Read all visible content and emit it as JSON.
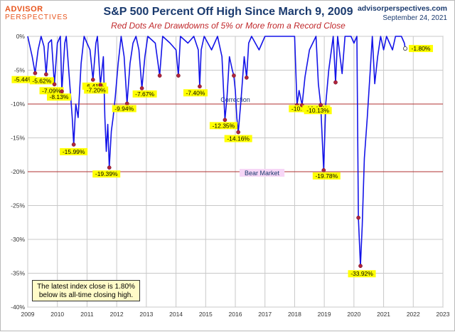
{
  "header": {
    "logo_line1": "ADVISOR",
    "logo_line2": "PERSPECTIVES",
    "site": "advisorperspectives.com",
    "date": "September 24, 2021"
  },
  "note": "The latest index close is 1.80% below its all-time closing high.",
  "colors": {
    "line": "#1414e8",
    "dot": "#b0243c",
    "refline": "#b03030",
    "label_bg": "#ffff00",
    "title": "#1a3a6e",
    "subtitle": "#c0282b"
  },
  "chart_data": {
    "type": "line",
    "title": "S&P 500 Percent Off High Since March 9, 2009",
    "subtitle": "Red Dots Are Drawdowns of 5% or More from a Record Close",
    "xlim": [
      2009,
      2023
    ],
    "ylim": [
      -40,
      0
    ],
    "x_ticks": [
      "2009",
      "2010",
      "2011",
      "2012",
      "2013",
      "2014",
      "2015",
      "2016",
      "2017",
      "2018",
      "2019",
      "2020",
      "2021",
      "2022",
      "2023"
    ],
    "y_ticks": [
      "0%",
      "-5%",
      "-10%",
      "-15%",
      "-20%",
      "-25%",
      "-30%",
      "-35%",
      "-40%"
    ],
    "grid": true,
    "series": [
      {
        "points": [
          [
            2009.0,
            0
          ],
          [
            2009.15,
            -3
          ],
          [
            2009.25,
            -5.44
          ],
          [
            2009.35,
            -2
          ],
          [
            2009.45,
            0
          ],
          [
            2009.55,
            -1.5
          ],
          [
            2009.62,
            -5.62
          ],
          [
            2009.7,
            -1
          ],
          [
            2009.8,
            -0.5
          ],
          [
            2009.9,
            -7.09
          ],
          [
            2010.0,
            -1
          ],
          [
            2010.1,
            0
          ],
          [
            2010.15,
            -8.13
          ],
          [
            2010.25,
            -1
          ],
          [
            2010.3,
            0
          ],
          [
            2010.4,
            -6
          ],
          [
            2010.5,
            -12
          ],
          [
            2010.55,
            -15.99
          ],
          [
            2010.62,
            -10
          ],
          [
            2010.7,
            -12
          ],
          [
            2010.8,
            -4
          ],
          [
            2010.9,
            0
          ],
          [
            2011.0,
            -1
          ],
          [
            2011.1,
            -2
          ],
          [
            2011.2,
            -6.41
          ],
          [
            2011.3,
            -1
          ],
          [
            2011.35,
            0
          ],
          [
            2011.45,
            -7.2
          ],
          [
            2011.55,
            -3
          ],
          [
            2011.6,
            -12
          ],
          [
            2011.65,
            -17
          ],
          [
            2011.7,
            -13
          ],
          [
            2011.75,
            -19.39
          ],
          [
            2011.82,
            -14
          ],
          [
            2011.88,
            -12
          ],
          [
            2011.95,
            -9
          ],
          [
            2012.05,
            -4
          ],
          [
            2012.15,
            0
          ],
          [
            2012.25,
            -3
          ],
          [
            2012.35,
            -9.94
          ],
          [
            2012.45,
            -4
          ],
          [
            2012.55,
            -1
          ],
          [
            2012.65,
            0
          ],
          [
            2012.75,
            -2
          ],
          [
            2012.85,
            -7.67
          ],
          [
            2012.95,
            -3
          ],
          [
            2013.05,
            0
          ],
          [
            2013.3,
            -1
          ],
          [
            2013.45,
            -5.8
          ],
          [
            2013.55,
            0
          ],
          [
            2013.8,
            -1
          ],
          [
            2014.0,
            -2
          ],
          [
            2014.08,
            -5.8
          ],
          [
            2014.15,
            0
          ],
          [
            2014.4,
            -1
          ],
          [
            2014.6,
            0
          ],
          [
            2014.75,
            -2
          ],
          [
            2014.8,
            -7.4
          ],
          [
            2014.85,
            -2
          ],
          [
            2014.95,
            0
          ],
          [
            2015.2,
            -2
          ],
          [
            2015.4,
            0
          ],
          [
            2015.55,
            -3
          ],
          [
            2015.65,
            -12.35
          ],
          [
            2015.72,
            -9
          ],
          [
            2015.8,
            -3
          ],
          [
            2015.9,
            -5
          ],
          [
            2015.95,
            -5.8
          ],
          [
            2016.0,
            -8
          ],
          [
            2016.05,
            -12
          ],
          [
            2016.1,
            -14.16
          ],
          [
            2016.2,
            -9
          ],
          [
            2016.3,
            -3
          ],
          [
            2016.38,
            -6.1
          ],
          [
            2016.45,
            -1
          ],
          [
            2016.55,
            0
          ],
          [
            2016.8,
            -2
          ],
          [
            2017.0,
            0
          ],
          [
            2017.5,
            0
          ],
          [
            2018.0,
            0
          ],
          [
            2018.08,
            -10.16
          ],
          [
            2018.15,
            -8
          ],
          [
            2018.25,
            -10.17
          ],
          [
            2018.35,
            -6
          ],
          [
            2018.5,
            -2
          ],
          [
            2018.72,
            0
          ],
          [
            2018.8,
            -7
          ],
          [
            2018.88,
            -10.13
          ],
          [
            2018.93,
            -15
          ],
          [
            2018.98,
            -19.78
          ],
          [
            2019.05,
            -10
          ],
          [
            2019.15,
            -5
          ],
          [
            2019.3,
            0
          ],
          [
            2019.38,
            -6.8
          ],
          [
            2019.45,
            0
          ],
          [
            2019.6,
            -5.5
          ],
          [
            2019.7,
            0
          ],
          [
            2019.9,
            0
          ],
          [
            2020.0,
            -1
          ],
          [
            2020.1,
            0
          ],
          [
            2020.15,
            -26.8
          ],
          [
            2020.22,
            -33.92
          ],
          [
            2020.28,
            -28
          ],
          [
            2020.35,
            -18
          ],
          [
            2020.45,
            -12
          ],
          [
            2020.55,
            -5
          ],
          [
            2020.62,
            0
          ],
          [
            2020.7,
            -7
          ],
          [
            2020.8,
            -3
          ],
          [
            2020.9,
            0
          ],
          [
            2021.0,
            -2
          ],
          [
            2021.1,
            0
          ],
          [
            2021.3,
            -2
          ],
          [
            2021.4,
            0
          ],
          [
            2021.6,
            0
          ],
          [
            2021.7,
            -1
          ],
          [
            2021.73,
            -1.8
          ]
        ]
      }
    ],
    "drawdowns": [
      {
        "x": 2009.25,
        "y": -5.44,
        "label": "-5.44%"
      },
      {
        "x": 2009.62,
        "y": -5.62,
        "label": "-5.62%"
      },
      {
        "x": 2009.9,
        "y": -7.09,
        "label": "-7.09%"
      },
      {
        "x": 2010.15,
        "y": -8.13,
        "label": "-8.13%"
      },
      {
        "x": 2010.55,
        "y": -15.99,
        "label": "-15.99%"
      },
      {
        "x": 2011.2,
        "y": -6.41,
        "label": "-6.41%"
      },
      {
        "x": 2011.45,
        "y": -7.2,
        "label": "-7.20%"
      },
      {
        "x": 2011.75,
        "y": -19.39,
        "label": "-19.39%"
      },
      {
        "x": 2012.35,
        "y": -9.94,
        "label": "-9.94%"
      },
      {
        "x": 2012.85,
        "y": -7.67,
        "label": "-7.67%"
      },
      {
        "x": 2013.45,
        "y": -5.8,
        "label": ""
      },
      {
        "x": 2014.08,
        "y": -5.8,
        "label": ""
      },
      {
        "x": 2014.8,
        "y": -7.4,
        "label": "-7.40%"
      },
      {
        "x": 2015.65,
        "y": -12.35,
        "label": "-12.35%"
      },
      {
        "x": 2015.95,
        "y": -5.8,
        "label": ""
      },
      {
        "x": 2016.1,
        "y": -14.16,
        "label": "-14.16%"
      },
      {
        "x": 2016.38,
        "y": -6.1,
        "label": ""
      },
      {
        "x": 2018.08,
        "y": -10.16,
        "label": "-10.16%"
      },
      {
        "x": 2018.25,
        "y": -10.17,
        "label": "-10.17%"
      },
      {
        "x": 2018.88,
        "y": -10.13,
        "label": "-10.13%"
      },
      {
        "x": 2018.98,
        "y": -19.78,
        "label": "-19.78%"
      },
      {
        "x": 2019.38,
        "y": -6.8,
        "label": ""
      },
      {
        "x": 2020.15,
        "y": -26.8,
        "label": ""
      },
      {
        "x": 2020.22,
        "y": -33.92,
        "label": "-33.92%"
      }
    ],
    "latest": {
      "x": 2021.73,
      "y": -1.8,
      "label": "-1.80%"
    },
    "reference_lines": [
      {
        "y": -10,
        "label": "Correction"
      },
      {
        "y": -20,
        "label": "Bear Market"
      }
    ]
  }
}
